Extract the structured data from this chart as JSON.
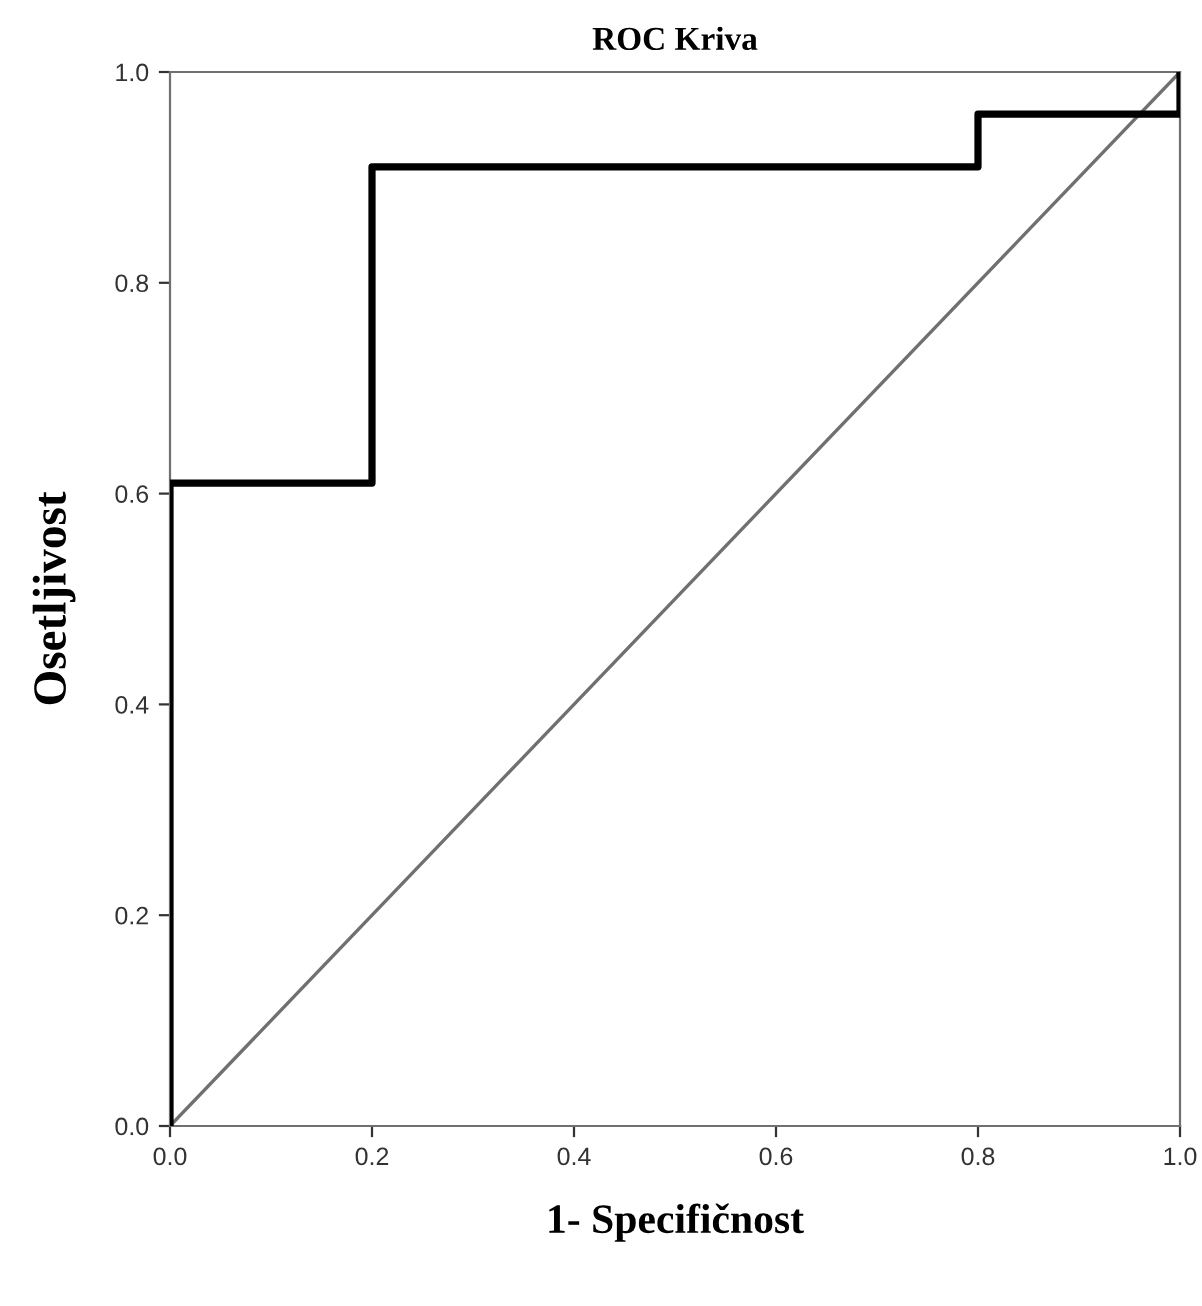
{
  "chart_data": {
    "type": "step",
    "title": "ROC Kriva",
    "xlabel": "1- Specifičnost",
    "ylabel": "Osetljivost",
    "xlim": [
      0,
      1
    ],
    "ylim": [
      0,
      1
    ],
    "xticks": [
      {
        "value": 0,
        "label": "0.0"
      },
      {
        "value": 0.2,
        "label": "0.2"
      },
      {
        "value": 0.4,
        "label": "0.4"
      },
      {
        "value": 0.6,
        "label": "0.6"
      },
      {
        "value": 0.8,
        "label": "0.8"
      },
      {
        "value": 1,
        "label": "1.0"
      }
    ],
    "yticks": [
      {
        "value": 0,
        "label": "0.0"
      },
      {
        "value": 0.2,
        "label": "0.2"
      },
      {
        "value": 0.4,
        "label": "0.4"
      },
      {
        "value": 0.6,
        "label": "0.6"
      },
      {
        "value": 0.8,
        "label": "0.8"
      },
      {
        "value": 1,
        "label": "1.0"
      }
    ],
    "grid": false,
    "legend": false,
    "marker": "none",
    "line_style": "solid",
    "series": [
      {
        "color": "#000000",
        "x": [
          0,
          0,
          0.2,
          0.2,
          0.8,
          0.8,
          1,
          1
        ],
        "values": [
          0,
          0.61,
          0.61,
          0.91,
          0.91,
          0.96,
          0.96,
          1
        ]
      },
      {
        "type": "line",
        "color": "#707070",
        "x": [
          0,
          1
        ],
        "values": [
          0,
          1
        ]
      }
    ]
  }
}
